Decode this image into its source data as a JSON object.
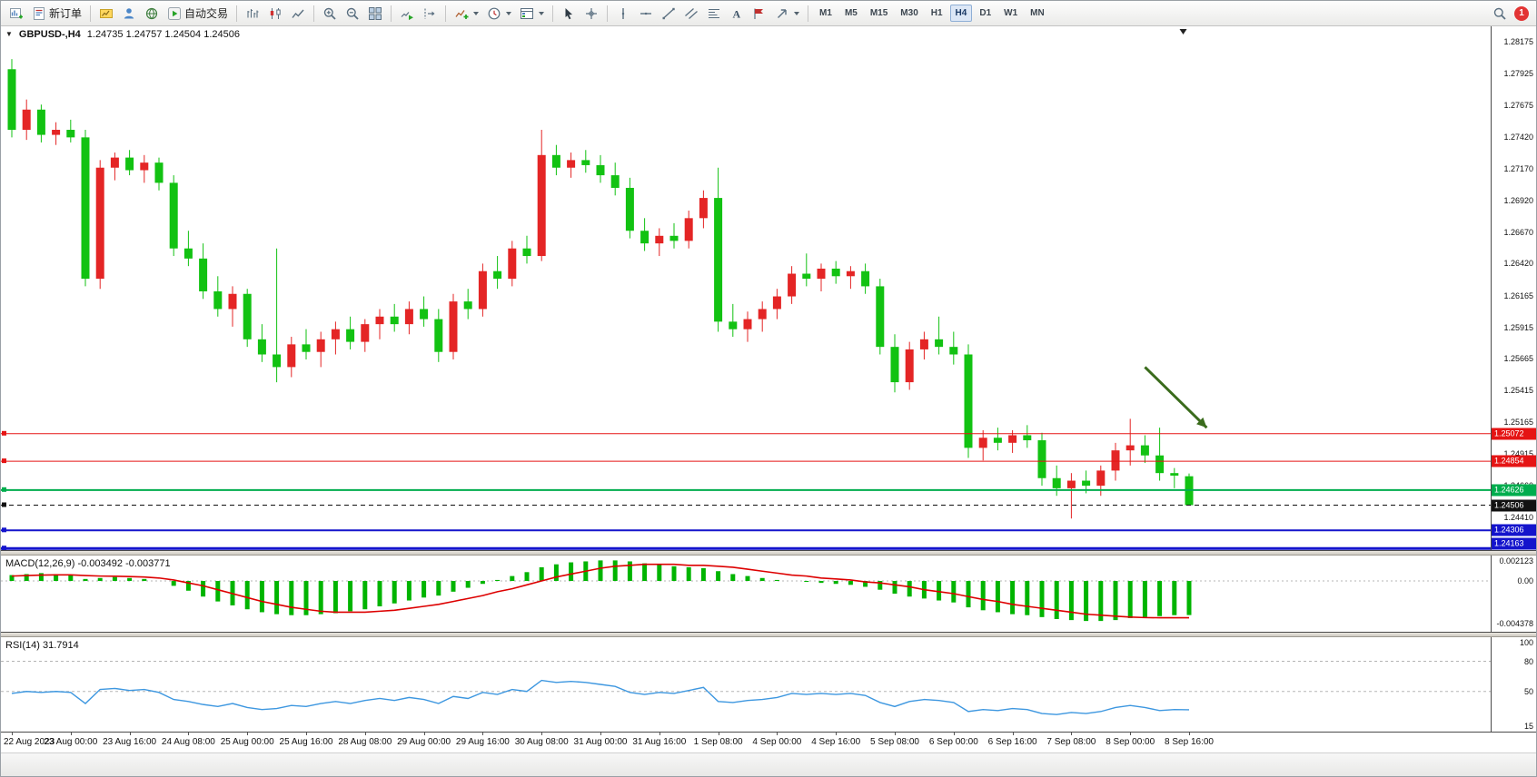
{
  "toolbar": {
    "new_order_label": "新订单",
    "autotrade_label": "自动交易",
    "timeframes": [
      "M1",
      "M5",
      "M15",
      "M30",
      "H1",
      "H4",
      "D1",
      "W1",
      "MN"
    ],
    "active_timeframe": "H4",
    "notification_count": "1"
  },
  "chart": {
    "title": "GBPUSD-,H4",
    "ohlc_text": "1.24735 1.24757 1.24504 1.24506",
    "price_axis_labels": [
      "1.28175",
      "1.27925",
      "1.27675",
      "1.27420",
      "1.27170",
      "1.26920",
      "1.26670",
      "1.26420",
      "1.26165",
      "1.25915",
      "1.25665",
      "1.25415",
      "1.25165",
      "1.24915",
      "1.24660",
      "1.24410",
      "1.24160"
    ],
    "price_lines": [
      {
        "price": 1.25072,
        "label": "1.25072",
        "color": "#e51414",
        "width": 1,
        "dash": false
      },
      {
        "price": 1.24854,
        "label": "1.24854",
        "color": "#e51414",
        "width": 1,
        "dash": false
      },
      {
        "price": 1.24626,
        "label": "1.24626",
        "color": "#00ad4e",
        "width": 2,
        "dash": false
      },
      {
        "price": 1.24506,
        "label": "1.24506",
        "color": "#111111",
        "width": 1,
        "dash": true
      },
      {
        "price": 1.24306,
        "label": "1.24306",
        "color": "#1414cc",
        "width": 2,
        "dash": false
      },
      {
        "price": 1.24163,
        "label": "1.24163",
        "color": "#1414cc",
        "width": 3,
        "dash": false
      }
    ],
    "arrow": {
      "from_bar": 77,
      "from_price": 1.256,
      "to_bar": 81.2,
      "to_price": 1.2512,
      "color": "#3a6b1c"
    }
  },
  "chart_data": {
    "type": "candlestick",
    "symbol": "GBPUSD-",
    "timeframe": "H4",
    "up_color": "#e42525",
    "down_color": "#12c212",
    "price_axis": {
      "max": 1.283,
      "min": 1.2415
    },
    "candles": [
      [
        1.2796,
        1.2804,
        1.2742,
        1.2748
      ],
      [
        1.2748,
        1.2772,
        1.274,
        1.2764
      ],
      [
        1.2764,
        1.2768,
        1.2738,
        1.2744
      ],
      [
        1.2744,
        1.2754,
        1.2736,
        1.2748
      ],
      [
        1.2748,
        1.2756,
        1.2738,
        1.2742
      ],
      [
        1.2742,
        1.2748,
        1.2624,
        1.263
      ],
      [
        1.263,
        1.2724,
        1.2622,
        1.2718
      ],
      [
        1.2718,
        1.273,
        1.2708,
        1.2726
      ],
      [
        1.2726,
        1.2732,
        1.2712,
        1.2716
      ],
      [
        1.2716,
        1.2728,
        1.2706,
        1.2722
      ],
      [
        1.2722,
        1.2726,
        1.27,
        1.2706
      ],
      [
        1.2706,
        1.2712,
        1.2648,
        1.2654
      ],
      [
        1.2654,
        1.2668,
        1.264,
        1.2646
      ],
      [
        1.2646,
        1.2658,
        1.2614,
        1.262
      ],
      [
        1.262,
        1.2632,
        1.26,
        1.2606
      ],
      [
        1.2606,
        1.2624,
        1.2592,
        1.2618
      ],
      [
        1.2618,
        1.2622,
        1.2576,
        1.2582
      ],
      [
        1.2582,
        1.2594,
        1.2564,
        1.257
      ],
      [
        1.257,
        1.2654,
        1.2548,
        1.256
      ],
      [
        1.256,
        1.2584,
        1.2552,
        1.2578
      ],
      [
        1.2578,
        1.259,
        1.2566,
        1.2572
      ],
      [
        1.2572,
        1.2588,
        1.256,
        1.2582
      ],
      [
        1.2582,
        1.2596,
        1.257,
        1.259
      ],
      [
        1.259,
        1.26,
        1.2574,
        1.258
      ],
      [
        1.258,
        1.2598,
        1.2572,
        1.2594
      ],
      [
        1.2594,
        1.2606,
        1.2582,
        1.26
      ],
      [
        1.26,
        1.261,
        1.2588,
        1.2594
      ],
      [
        1.2594,
        1.2612,
        1.2586,
        1.2606
      ],
      [
        1.2606,
        1.2616,
        1.2592,
        1.2598
      ],
      [
        1.2598,
        1.2606,
        1.2564,
        1.2572
      ],
      [
        1.2572,
        1.2618,
        1.2566,
        1.2612
      ],
      [
        1.2612,
        1.2622,
        1.2598,
        1.2606
      ],
      [
        1.2606,
        1.2642,
        1.26,
        1.2636
      ],
      [
        1.2636,
        1.2648,
        1.2622,
        1.263
      ],
      [
        1.263,
        1.266,
        1.2624,
        1.2654
      ],
      [
        1.2654,
        1.2664,
        1.2642,
        1.2648
      ],
      [
        1.2648,
        1.2748,
        1.2644,
        1.2728
      ],
      [
        1.2728,
        1.2736,
        1.2712,
        1.2718
      ],
      [
        1.2718,
        1.273,
        1.271,
        1.2724
      ],
      [
        1.2724,
        1.2732,
        1.2714,
        1.272
      ],
      [
        1.272,
        1.2728,
        1.2706,
        1.2712
      ],
      [
        1.2712,
        1.2722,
        1.2696,
        1.2702
      ],
      [
        1.2702,
        1.271,
        1.2662,
        1.2668
      ],
      [
        1.2668,
        1.2678,
        1.2652,
        1.2658
      ],
      [
        1.2658,
        1.267,
        1.2648,
        1.2664
      ],
      [
        1.2664,
        1.2674,
        1.2654,
        1.266
      ],
      [
        1.266,
        1.2684,
        1.2654,
        1.2678
      ],
      [
        1.2678,
        1.27,
        1.267,
        1.2694
      ],
      [
        1.2694,
        1.2718,
        1.2588,
        1.2596
      ],
      [
        1.2596,
        1.261,
        1.2584,
        1.259
      ],
      [
        1.259,
        1.2604,
        1.258,
        1.2598
      ],
      [
        1.2598,
        1.2612,
        1.2588,
        1.2606
      ],
      [
        1.2606,
        1.2622,
        1.2598,
        1.2616
      ],
      [
        1.2616,
        1.264,
        1.261,
        1.2634
      ],
      [
        1.2634,
        1.265,
        1.2624,
        1.263
      ],
      [
        1.263,
        1.2642,
        1.262,
        1.2638
      ],
      [
        1.2638,
        1.2644,
        1.2626,
        1.2632
      ],
      [
        1.2632,
        1.264,
        1.2622,
        1.2636
      ],
      [
        1.2636,
        1.2642,
        1.2618,
        1.2624
      ],
      [
        1.2624,
        1.263,
        1.257,
        1.2576
      ],
      [
        1.2576,
        1.2586,
        1.254,
        1.2548
      ],
      [
        1.2548,
        1.258,
        1.2542,
        1.2574
      ],
      [
        1.2574,
        1.2588,
        1.2566,
        1.2582
      ],
      [
        1.2582,
        1.26,
        1.257,
        1.2576
      ],
      [
        1.2576,
        1.2588,
        1.2562,
        1.257
      ],
      [
        1.257,
        1.2578,
        1.2488,
        1.2496
      ],
      [
        1.2496,
        1.251,
        1.2486,
        1.2504
      ],
      [
        1.2504,
        1.2512,
        1.2494,
        1.25
      ],
      [
        1.25,
        1.251,
        1.2492,
        1.2506
      ],
      [
        1.2506,
        1.2514,
        1.2496,
        1.2502
      ],
      [
        1.2502,
        1.2508,
        1.2466,
        1.2472
      ],
      [
        1.2472,
        1.2482,
        1.2458,
        1.2464
      ],
      [
        1.2464,
        1.2476,
        1.244,
        1.247
      ],
      [
        1.247,
        1.2478,
        1.246,
        1.2466
      ],
      [
        1.2466,
        1.2482,
        1.2458,
        1.2478
      ],
      [
        1.2478,
        1.25,
        1.247,
        1.2494
      ],
      [
        1.2494,
        1.2519,
        1.2482,
        1.2498
      ],
      [
        1.2498,
        1.2506,
        1.2484,
        1.249
      ],
      [
        1.249,
        1.2512,
        1.247,
        1.2476
      ],
      [
        1.2476,
        1.248,
        1.2464,
        1.2474
      ],
      [
        1.24735,
        1.24757,
        1.24504,
        1.24506
      ]
    ],
    "time_labels": [
      "22 Aug 2023",
      "23 Aug 00:00",
      "23 Aug 16:00",
      "24 Aug 08:00",
      "25 Aug 00:00",
      "25 Aug 16:00",
      "28 Aug 08:00",
      "29 Aug 00:00",
      "29 Aug 16:00",
      "30 Aug 08:00",
      "31 Aug 00:00",
      "31 Aug 16:00",
      "1 Sep 08:00",
      "4 Sep 00:00",
      "4 Sep 16:00",
      "5 Sep 08:00",
      "6 Sep 00:00",
      "6 Sep 16:00",
      "7 Sep 08:00",
      "8 Sep 00:00",
      "8 Sep 16:00"
    ],
    "macd": {
      "axis": {
        "max": 0.0026,
        "min": -0.0052
      },
      "color": "#00b400",
      "signal_color": "#dd0000",
      "histogram": [
        0.0006,
        0.0007,
        0.0008,
        0.0007,
        0.0006,
        0.0002,
        0.0003,
        0.0004,
        0.0003,
        0.0002,
        0.0,
        -0.0005,
        -0.001,
        -0.0016,
        -0.0021,
        -0.0025,
        -0.0029,
        -0.0032,
        -0.0034,
        -0.0035,
        -0.0035,
        -0.0034,
        -0.0033,
        -0.0031,
        -0.0029,
        -0.0026,
        -0.0023,
        -0.002,
        -0.0017,
        -0.0015,
        -0.0011,
        -0.0007,
        -0.0003,
        0.0001,
        0.0005,
        0.0009,
        0.0014,
        0.0017,
        0.0019,
        0.002,
        0.0021,
        0.0021,
        0.002,
        0.0018,
        0.0017,
        0.0015,
        0.0014,
        0.0013,
        0.001,
        0.0007,
        0.0005,
        0.0003,
        0.0001,
        0.0,
        -0.0001,
        -0.0002,
        -0.0003,
        -0.0004,
        -0.0006,
        -0.0009,
        -0.0013,
        -0.0016,
        -0.0018,
        -0.002,
        -0.0022,
        -0.0027,
        -0.003,
        -0.0032,
        -0.0034,
        -0.0035,
        -0.0037,
        -0.0039,
        -0.004,
        -0.0041,
        -0.0041,
        -0.004,
        -0.0038,
        -0.0037,
        -0.0036,
        -0.0035,
        -0.00349
      ],
      "signal": [
        0.0005,
        0.00055,
        0.0006,
        0.00062,
        0.00062,
        0.00055,
        0.0005,
        0.00048,
        0.00045,
        0.0004,
        0.0003,
        0.0001,
        -0.0002,
        -0.0005,
        -0.0009,
        -0.0013,
        -0.0017,
        -0.0021,
        -0.0024,
        -0.0027,
        -0.0029,
        -0.0031,
        -0.0032,
        -0.0032,
        -0.0032,
        -0.0031,
        -0.003,
        -0.0028,
        -0.0026,
        -0.0024,
        -0.0021,
        -0.0018,
        -0.0015,
        -0.0011,
        -0.0008,
        -0.0004,
        0.0,
        0.0004,
        0.0007,
        0.001,
        0.0013,
        0.0015,
        0.0016,
        0.0017,
        0.0017,
        0.0017,
        0.0016,
        0.0016,
        0.0015,
        0.0014,
        0.0012,
        0.001,
        0.0008,
        0.0006,
        0.0005,
        0.0003,
        0.0002,
        0.0001,
        -0.0001,
        -0.0002,
        -0.0004,
        -0.0006,
        -0.0009,
        -0.0011,
        -0.0013,
        -0.0016,
        -0.0019,
        -0.0021,
        -0.0024,
        -0.0026,
        -0.0028,
        -0.003,
        -0.0032,
        -0.0034,
        -0.0035,
        -0.0036,
        -0.0037,
        -0.00375,
        -0.00377,
        -0.00377,
        -0.00377
      ]
    },
    "rsi": {
      "axis": {
        "max": 104,
        "min": 10
      },
      "color": "#3d97e0",
      "levels": [
        80,
        50
      ],
      "values": [
        48,
        50,
        49,
        50,
        49,
        38,
        52,
        53,
        51,
        52,
        49,
        42,
        40,
        37,
        35,
        38,
        34,
        32,
        33,
        36,
        35,
        38,
        40,
        38,
        41,
        43,
        41,
        44,
        42,
        38,
        45,
        43,
        49,
        47,
        52,
        50,
        61,
        59,
        60,
        59,
        57,
        55,
        49,
        47,
        49,
        48,
        51,
        54,
        40,
        39,
        41,
        42,
        44,
        48,
        47,
        48,
        47,
        48,
        46,
        39,
        35,
        40,
        42,
        41,
        39,
        30,
        32,
        31,
        33,
        32,
        28,
        27,
        29,
        28,
        30,
        34,
        36,
        34,
        31,
        32,
        31.79
      ]
    }
  },
  "macd_panel": {
    "label": "MACD(12,26,9) -0.003492 -0.003771",
    "scale": [
      "0.002123",
      "0.00",
      "-0.004378"
    ]
  },
  "rsi_panel": {
    "label": "RSI(14) 31.7914",
    "scale": [
      "100",
      "80",
      "50",
      "15"
    ]
  }
}
